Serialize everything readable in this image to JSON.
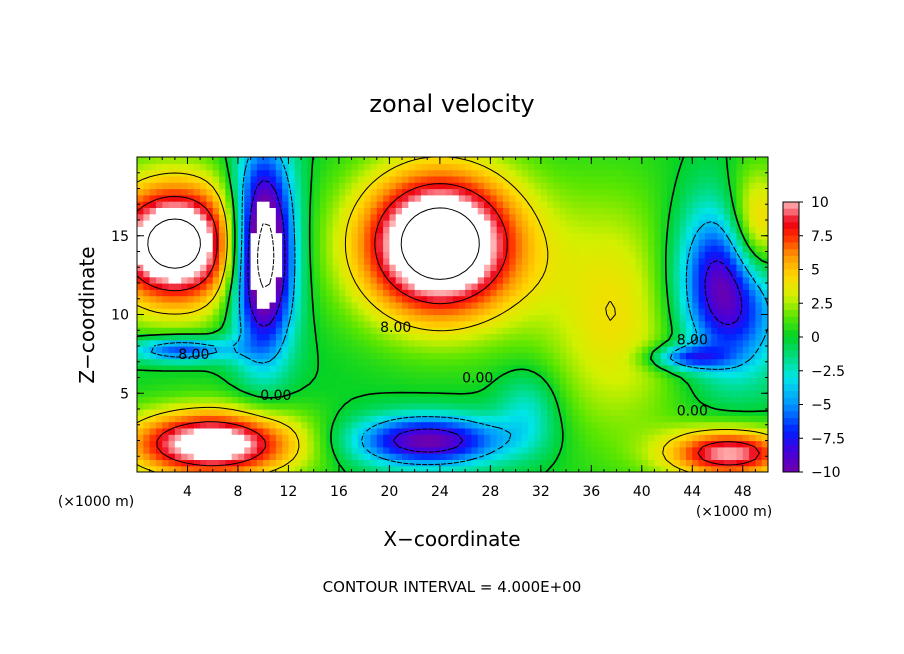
{
  "chart_data": {
    "type": "heatmap",
    "title": "zonal velocity",
    "xlabel": "X−coordinate",
    "ylabel": "Z−coordinate",
    "x_unit_label": "(×1000 m)",
    "z_unit_label": "(×1000 m)",
    "footer": "CONTOUR INTERVAL = 4.000E+00",
    "xlim": [
      0,
      50
    ],
    "ylim": [
      0,
      20
    ],
    "x_ticks": [
      4,
      8,
      12,
      16,
      20,
      24,
      28,
      32,
      36,
      40,
      44,
      48
    ],
    "x_tick_labels": [
      "4",
      "8",
      "12",
      "16",
      "20",
      "24",
      "28",
      "32",
      "36",
      "40",
      "44",
      "48"
    ],
    "y_ticks": [
      5,
      10,
      15
    ],
    "y_tick_labels": [
      "5",
      "10",
      "15"
    ],
    "colorbar": {
      "range": [
        -10,
        10
      ],
      "ticks": [
        10,
        7.5,
        5,
        2.5,
        0,
        -2.5,
        -5,
        -7.5,
        -10
      ],
      "tick_labels": [
        "10",
        "7.5",
        "5",
        "2.5",
        "0",
        "−2.5",
        "−5",
        "−7.5",
        "−10"
      ]
    },
    "contour_interval": 4,
    "contour_labels": [
      {
        "text": "8.00",
        "x": 4.5,
        "y": 7.5
      },
      {
        "text": "8.00",
        "x": 20.5,
        "y": 9.2
      },
      {
        "text": "0.00",
        "x": 11,
        "y": 4.9
      },
      {
        "text": "0.00",
        "x": 27,
        "y": 6.0
      },
      {
        "text": "8.00",
        "x": 44,
        "y": 8.4
      },
      {
        "text": "0.00",
        "x": 44,
        "y": 3.9
      }
    ]
  }
}
